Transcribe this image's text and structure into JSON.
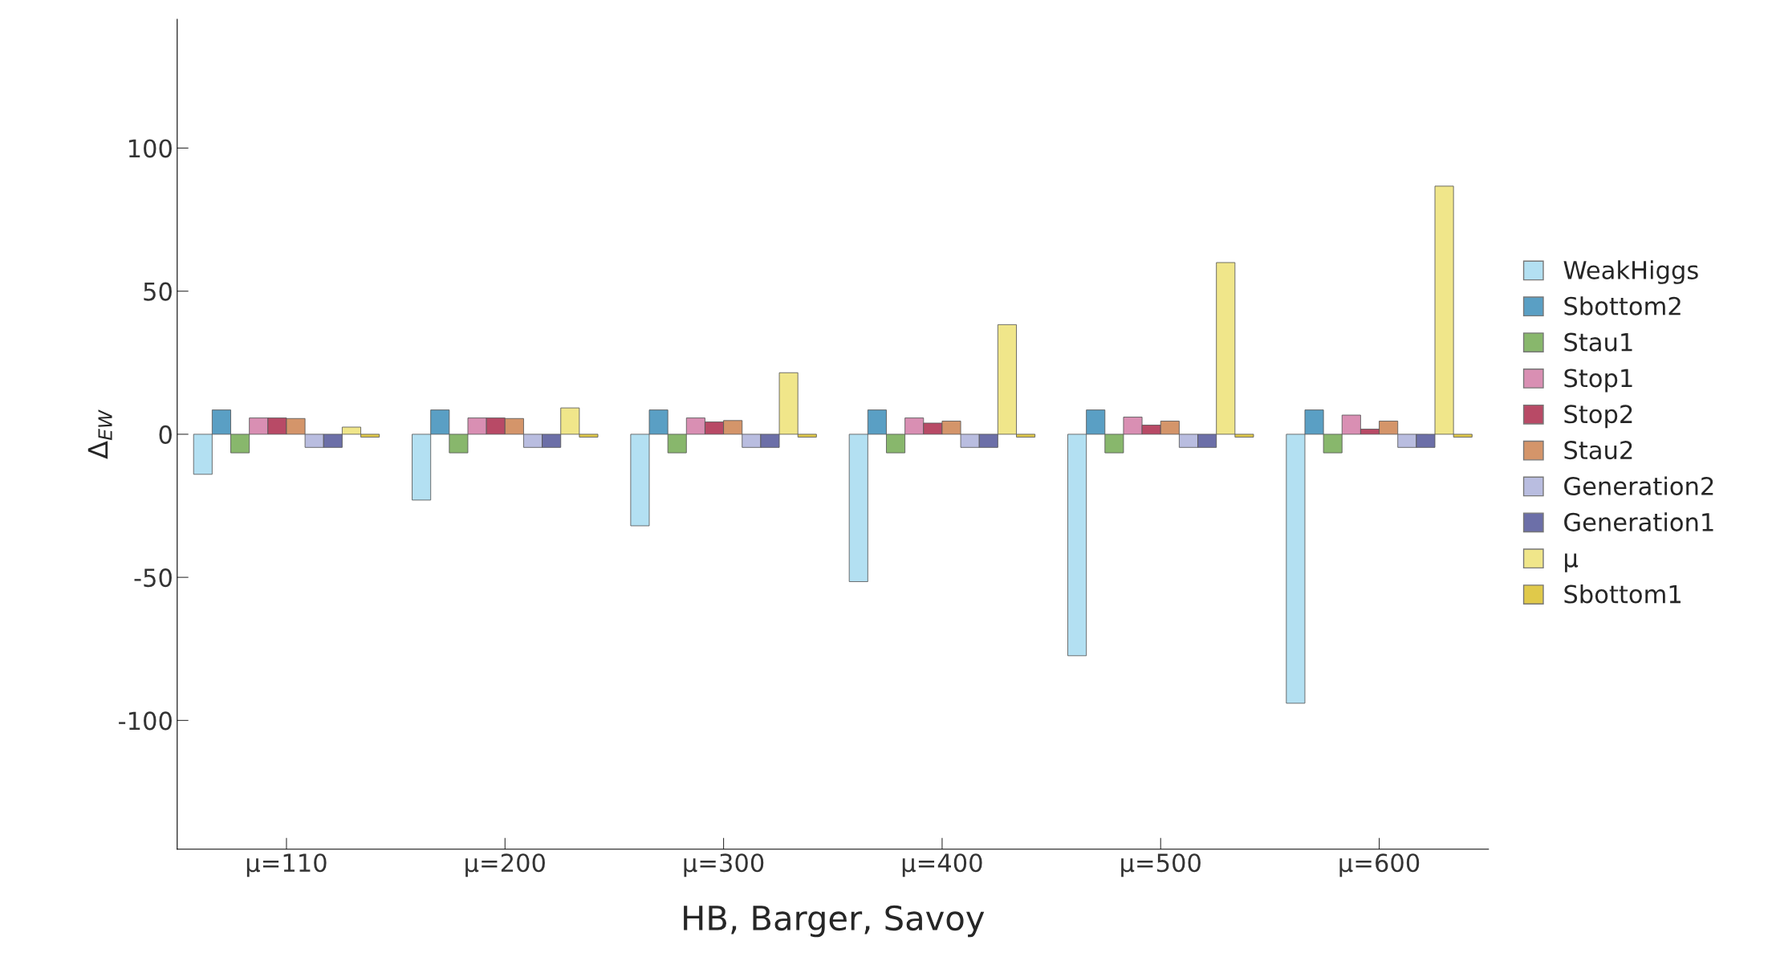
{
  "chart_data": {
    "type": "bar",
    "xlabel": "HB, Barger, Savoy",
    "ylabel": "Δ$_{EW}$",
    "categories": [
      "μ=110",
      "μ=200",
      "μ=300",
      "μ=400",
      "μ=500",
      "μ=600"
    ],
    "ylim": [
      -145,
      145
    ],
    "yticks": [
      -100,
      -50,
      0,
      50,
      100
    ],
    "grid": false,
    "legend": "right",
    "series": [
      {
        "name": "WeakHiggs",
        "color": "#b3e0f2",
        "values": [
          -14,
          -23,
          -32,
          -51.5,
          -77.4,
          -94
        ]
      },
      {
        "name": "Sbottom2",
        "color": "#5a9fc4",
        "values": [
          8.5,
          8.5,
          8.5,
          8.5,
          8.5,
          8.5
        ]
      },
      {
        "name": "Stau1",
        "color": "#88b76c",
        "values": [
          -6.5,
          -6.5,
          -6.5,
          -6.5,
          -6.5,
          -6.5
        ]
      },
      {
        "name": "Stop1",
        "color": "#d98fb3",
        "values": [
          5.7,
          5.7,
          5.7,
          5.7,
          6,
          6.7
        ]
      },
      {
        "name": "Stop2",
        "color": "#b84a66",
        "values": [
          5.7,
          5.7,
          4.3,
          3.9,
          3.2,
          1.8
        ]
      },
      {
        "name": "Stau2",
        "color": "#d4956a",
        "values": [
          5.5,
          5.5,
          4.8,
          4.6,
          4.6,
          4.6
        ]
      },
      {
        "name": "Generation2",
        "color": "#b9bde0",
        "values": [
          -4.6,
          -4.6,
          -4.6,
          -4.6,
          -4.6,
          -4.6
        ]
      },
      {
        "name": "Generation1",
        "color": "#6c6fa8",
        "values": [
          -4.6,
          -4.6,
          -4.6,
          -4.6,
          -4.6,
          -4.6
        ]
      },
      {
        "name": "μ",
        "color": "#f0e68a",
        "values": [
          2.5,
          9.2,
          21.5,
          38.3,
          60,
          86.7
        ]
      },
      {
        "name": "Sbottom1",
        "color": "#e0c94a",
        "values": [
          -1,
          -1,
          -1,
          -1,
          -1,
          -1
        ]
      }
    ]
  }
}
